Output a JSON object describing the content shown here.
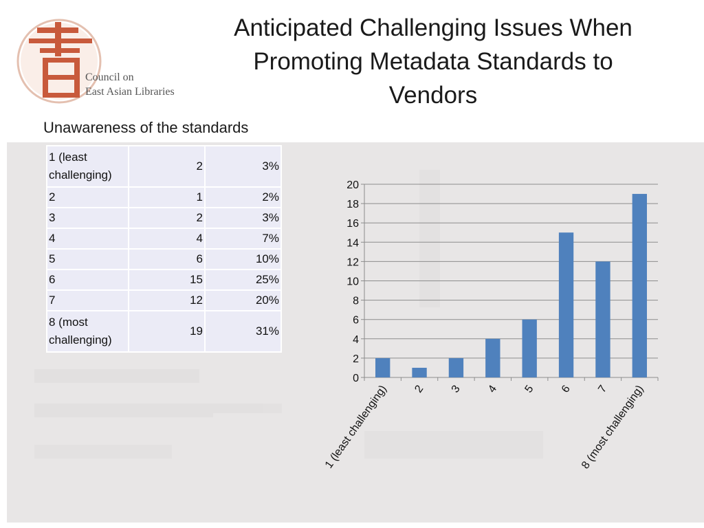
{
  "title": "Anticipated Challenging Issues When Promoting Metadata Standards to Vendors",
  "subtitle": "Unawareness of the standards",
  "logo": {
    "line1": "Council on",
    "line2": "East Asian Libraries",
    "color": "#c85a3c"
  },
  "table": {
    "rows": [
      {
        "label": "1 (least challenging)",
        "count": "2",
        "percent": "3%"
      },
      {
        "label": "2",
        "count": "1",
        "percent": "2%"
      },
      {
        "label": "3",
        "count": "2",
        "percent": "3%"
      },
      {
        "label": "4",
        "count": "4",
        "percent": "7%"
      },
      {
        "label": "5",
        "count": "6",
        "percent": "10%"
      },
      {
        "label": "6",
        "count": "15",
        "percent": "25%"
      },
      {
        "label": "7",
        "count": "12",
        "percent": "20%"
      },
      {
        "label": "8 (most challenging)",
        "count": "19",
        "percent": "31%"
      }
    ]
  },
  "chart_data": {
    "type": "bar",
    "categories": [
      "1 (least challenging)",
      "2",
      "3",
      "4",
      "5",
      "6",
      "7",
      "8 (most challenging)"
    ],
    "values": [
      2,
      1,
      2,
      4,
      6,
      15,
      12,
      19
    ],
    "title": "",
    "xlabel": "",
    "ylabel": "",
    "ylim": [
      0,
      20
    ],
    "yticks": [
      0,
      2,
      4,
      6,
      8,
      10,
      12,
      14,
      16,
      18,
      20
    ],
    "grid": true,
    "legend": "none",
    "bar_color": "#4f81bd"
  }
}
